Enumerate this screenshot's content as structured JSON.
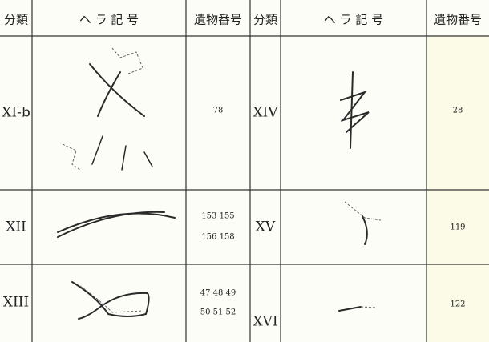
{
  "table": {
    "header": [
      "分類",
      "ヘ ラ 記 号",
      "遺物番号",
      "分類",
      "ヘ ラ 記 号",
      "遺物番号"
    ],
    "rows": [
      {
        "left": {
          "class": "XI-b",
          "numbers": [
            "78"
          ]
        },
        "right": {
          "class": "XIV",
          "numbers": [
            "28"
          ]
        }
      },
      {
        "left": {
          "class": "XII",
          "numbers": [
            "153  155",
            "156  158"
          ]
        },
        "right": {
          "class": "XV",
          "numbers": [
            "119"
          ]
        }
      },
      {
        "left": {
          "class": "XIII",
          "numbers": [
            "47  48  49",
            "50  51  52"
          ]
        },
        "right": {
          "class": "XVI",
          "numbers": [
            "122"
          ]
        }
      }
    ]
  }
}
